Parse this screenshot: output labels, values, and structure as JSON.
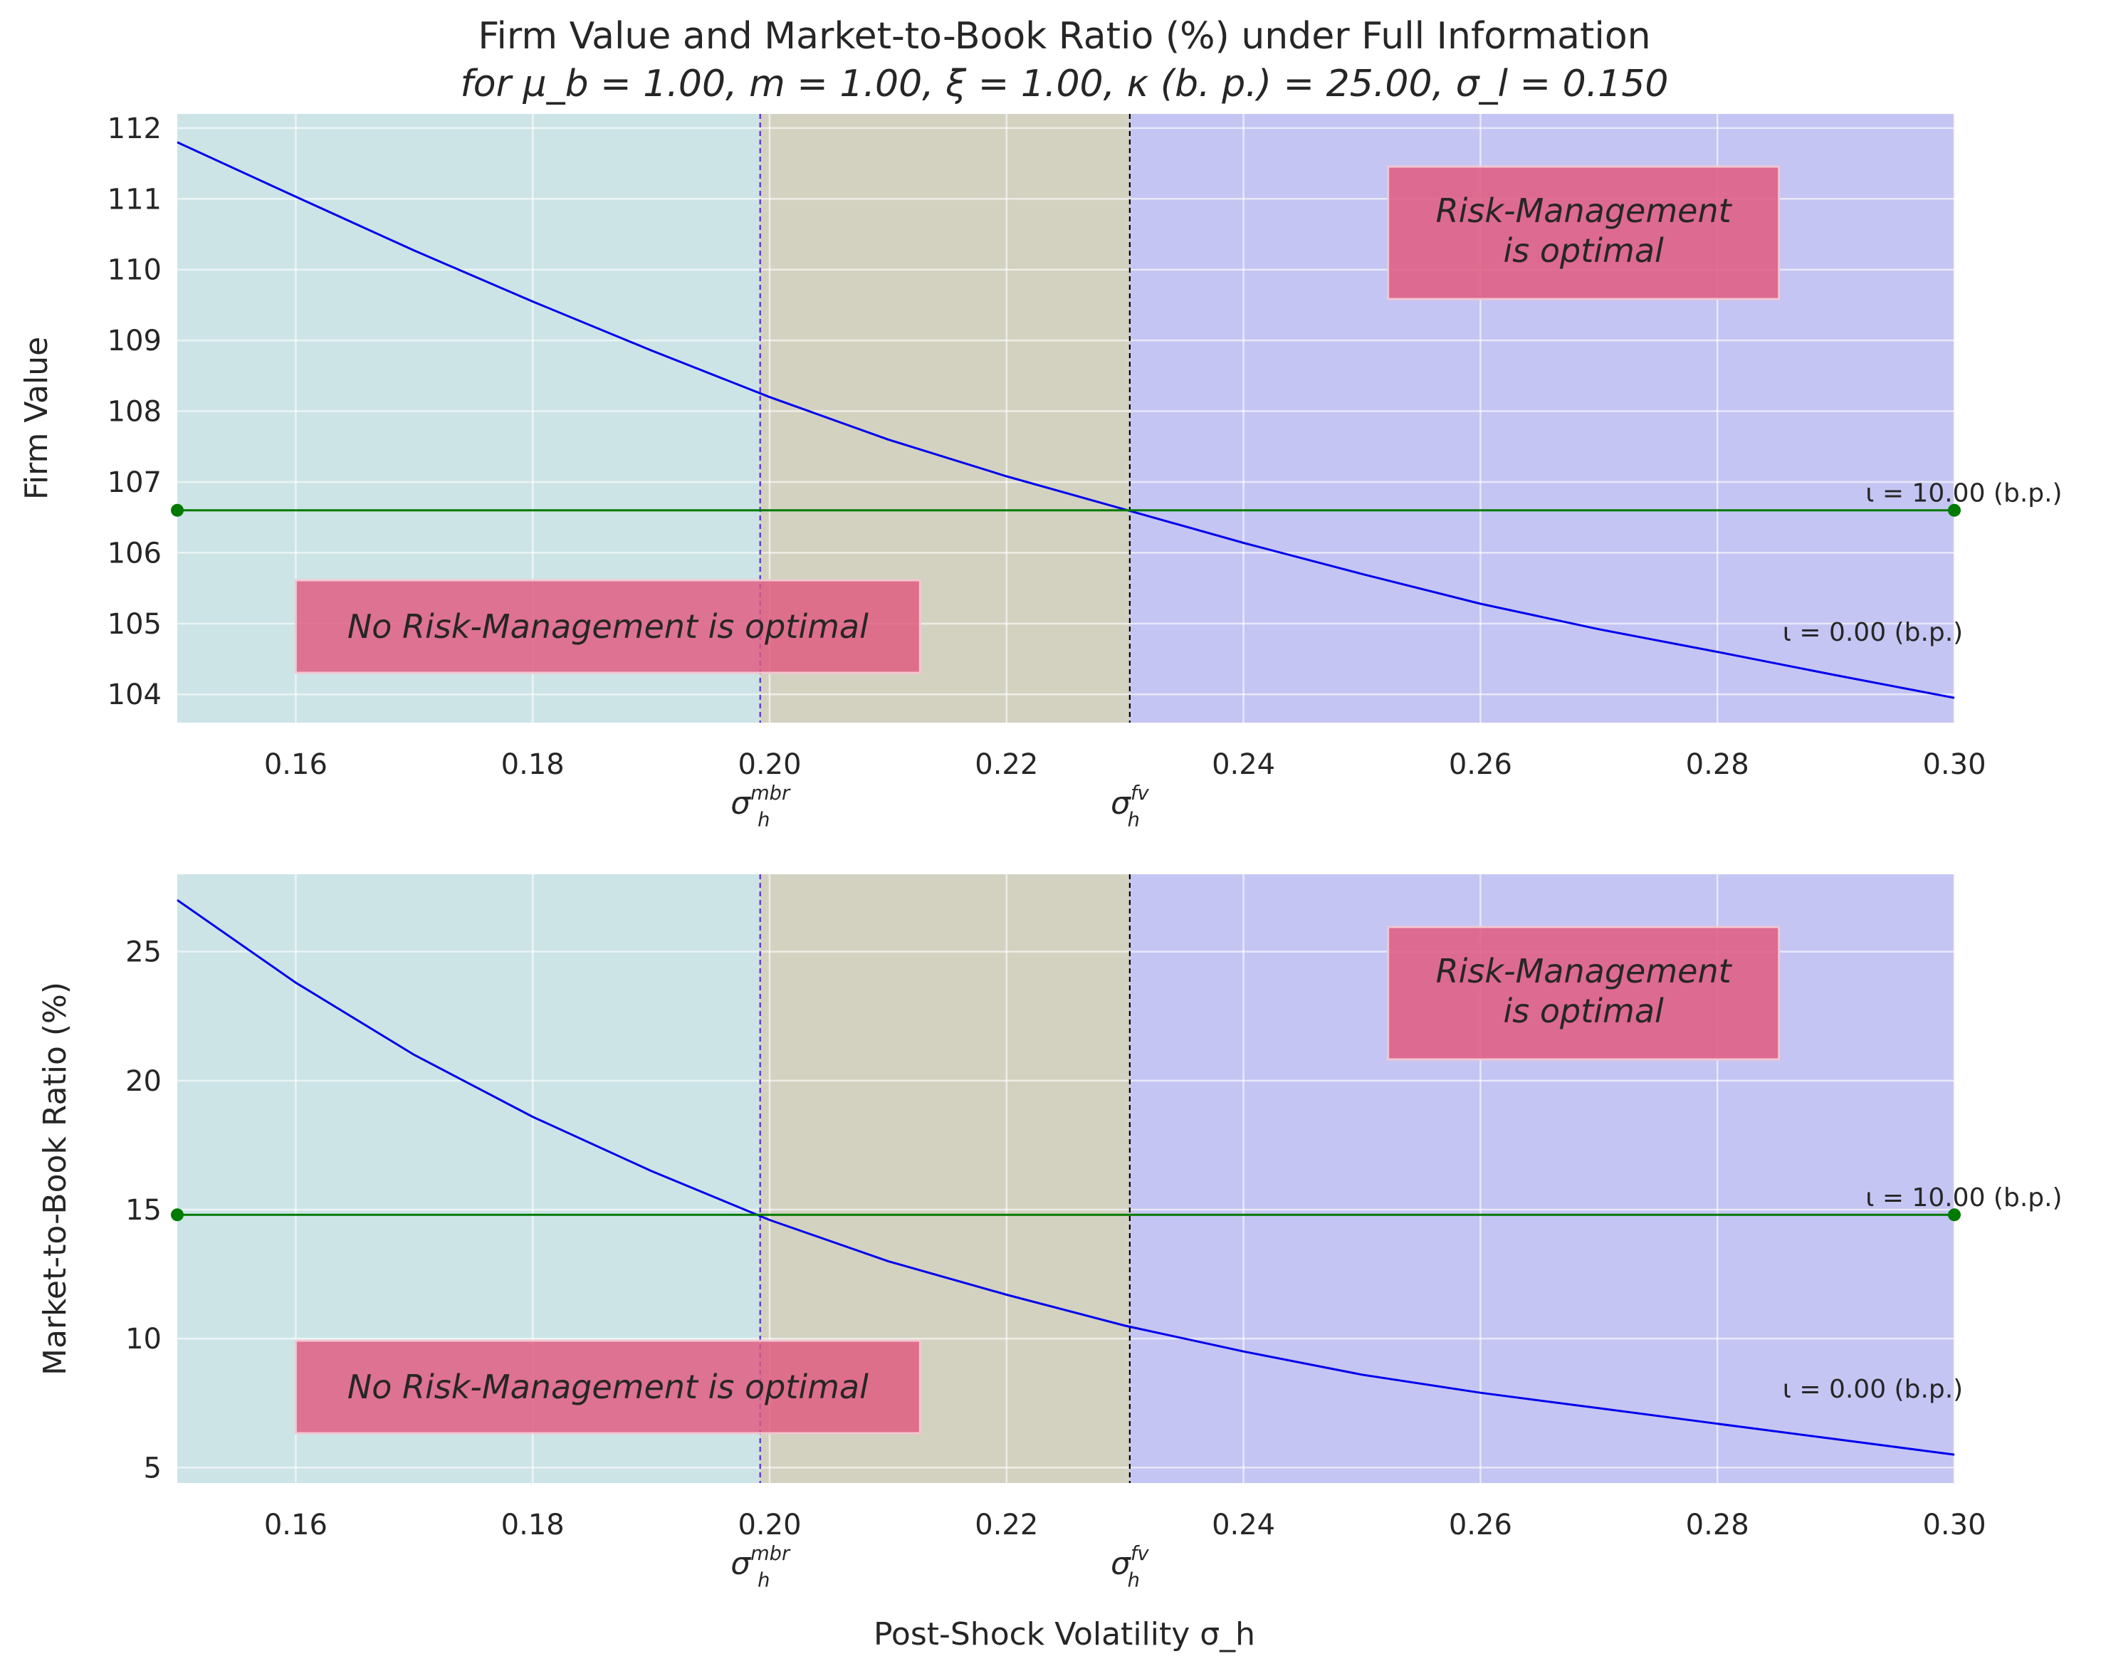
{
  "figure": {
    "title_line1": "Firm Value and Market-to-Book Ratio (%) under Full Information",
    "title_line2": "for μ_b = 1.00, m = 1.00, ξ = 1.00, κ (b. p.) = 25.00, σ_l = 0.150",
    "xlabel": "Post-Shock Volatility σ_h"
  },
  "colors": {
    "background": "#eaeaf2",
    "region_no_rm": "#cde4e7",
    "region_middle": "#d3d2c1",
    "region_rm": "#c5c5f3",
    "curve_no_rm": "#0000ee",
    "line_rm": "#007a00",
    "vline_mbr": "#5a28d8",
    "vline_fv": "#000000",
    "box": "#e0597f",
    "grid": "#ffffff"
  },
  "chart_data": [
    {
      "type": "line",
      "ylabel": "Firm Value",
      "xlim": [
        0.15,
        0.3
      ],
      "ylim": [
        103.6,
        112.2
      ],
      "xticks": [
        "0.16",
        "0.18",
        "0.20",
        "0.22",
        "0.24",
        "0.26",
        "0.28",
        "0.30"
      ],
      "yticks": [
        "104",
        "105",
        "106",
        "107",
        "108",
        "109",
        "110",
        "111",
        "112"
      ],
      "vlines": [
        {
          "x": 0.1992,
          "label": "σ_h^mbr"
        },
        {
          "x": 0.2304,
          "label": "σ_h^fv"
        }
      ],
      "regions": [
        {
          "x0": 0.15,
          "x1": 0.1992,
          "name": "no-risk-management"
        },
        {
          "x0": 0.1992,
          "x1": 0.2304,
          "name": "between-thresholds"
        },
        {
          "x0": 0.2304,
          "x1": 0.3,
          "name": "risk-management"
        }
      ],
      "series": [
        {
          "label": "ι = 0.00 (b.p.)",
          "kind": "curve",
          "x": [
            0.15,
            0.16,
            0.17,
            0.18,
            0.19,
            0.2,
            0.21,
            0.22,
            0.23,
            0.24,
            0.25,
            0.26,
            0.27,
            0.28,
            0.29,
            0.3
          ],
          "y": [
            111.8,
            111.03,
            110.27,
            109.55,
            108.86,
            108.2,
            107.6,
            107.08,
            106.61,
            106.14,
            105.7,
            105.28,
            104.92,
            104.6,
            104.27,
            103.95
          ]
        },
        {
          "label": "ι = 10.00 (b.p.)",
          "kind": "flat",
          "x": [
            0.15,
            0.3
          ],
          "y": [
            106.6,
            106.6
          ]
        }
      ],
      "annotations": {
        "no_rm": "No Risk-Management is optimal",
        "rm_line1": "Risk-Management",
        "rm_line2": "is optimal"
      }
    },
    {
      "type": "line",
      "ylabel": "Market-to-Book Ratio (%)",
      "xlim": [
        0.15,
        0.3
      ],
      "ylim": [
        4.4,
        28.0
      ],
      "xticks": [
        "0.16",
        "0.18",
        "0.20",
        "0.22",
        "0.24",
        "0.26",
        "0.28",
        "0.30"
      ],
      "yticks": [
        "5",
        "10",
        "15",
        "20",
        "25"
      ],
      "vlines": [
        {
          "x": 0.1992,
          "label": "σ_h^mbr"
        },
        {
          "x": 0.2304,
          "label": "σ_h^fv"
        }
      ],
      "regions": [
        {
          "x0": 0.15,
          "x1": 0.1992,
          "name": "no-risk-management"
        },
        {
          "x0": 0.1992,
          "x1": 0.2304,
          "name": "between-thresholds"
        },
        {
          "x0": 0.2304,
          "x1": 0.3,
          "name": "risk-management"
        }
      ],
      "series": [
        {
          "label": "ι = 0.00 (b.p.)",
          "kind": "curve",
          "x": [
            0.15,
            0.16,
            0.17,
            0.18,
            0.19,
            0.2,
            0.21,
            0.22,
            0.23,
            0.24,
            0.25,
            0.26,
            0.27,
            0.28,
            0.29,
            0.3
          ],
          "y": [
            27.0,
            23.8,
            21.0,
            18.6,
            16.5,
            14.6,
            13.0,
            11.7,
            10.5,
            9.5,
            8.6,
            7.9,
            7.3,
            6.7,
            6.1,
            5.5
          ]
        },
        {
          "label": "ι = 10.00 (b.p.)",
          "kind": "flat",
          "x": [
            0.15,
            0.3
          ],
          "y": [
            14.8,
            14.8
          ]
        }
      ],
      "annotations": {
        "no_rm": "No Risk-Management is optimal",
        "rm_line1": "Risk-Management",
        "rm_line2": "is optimal"
      }
    }
  ]
}
